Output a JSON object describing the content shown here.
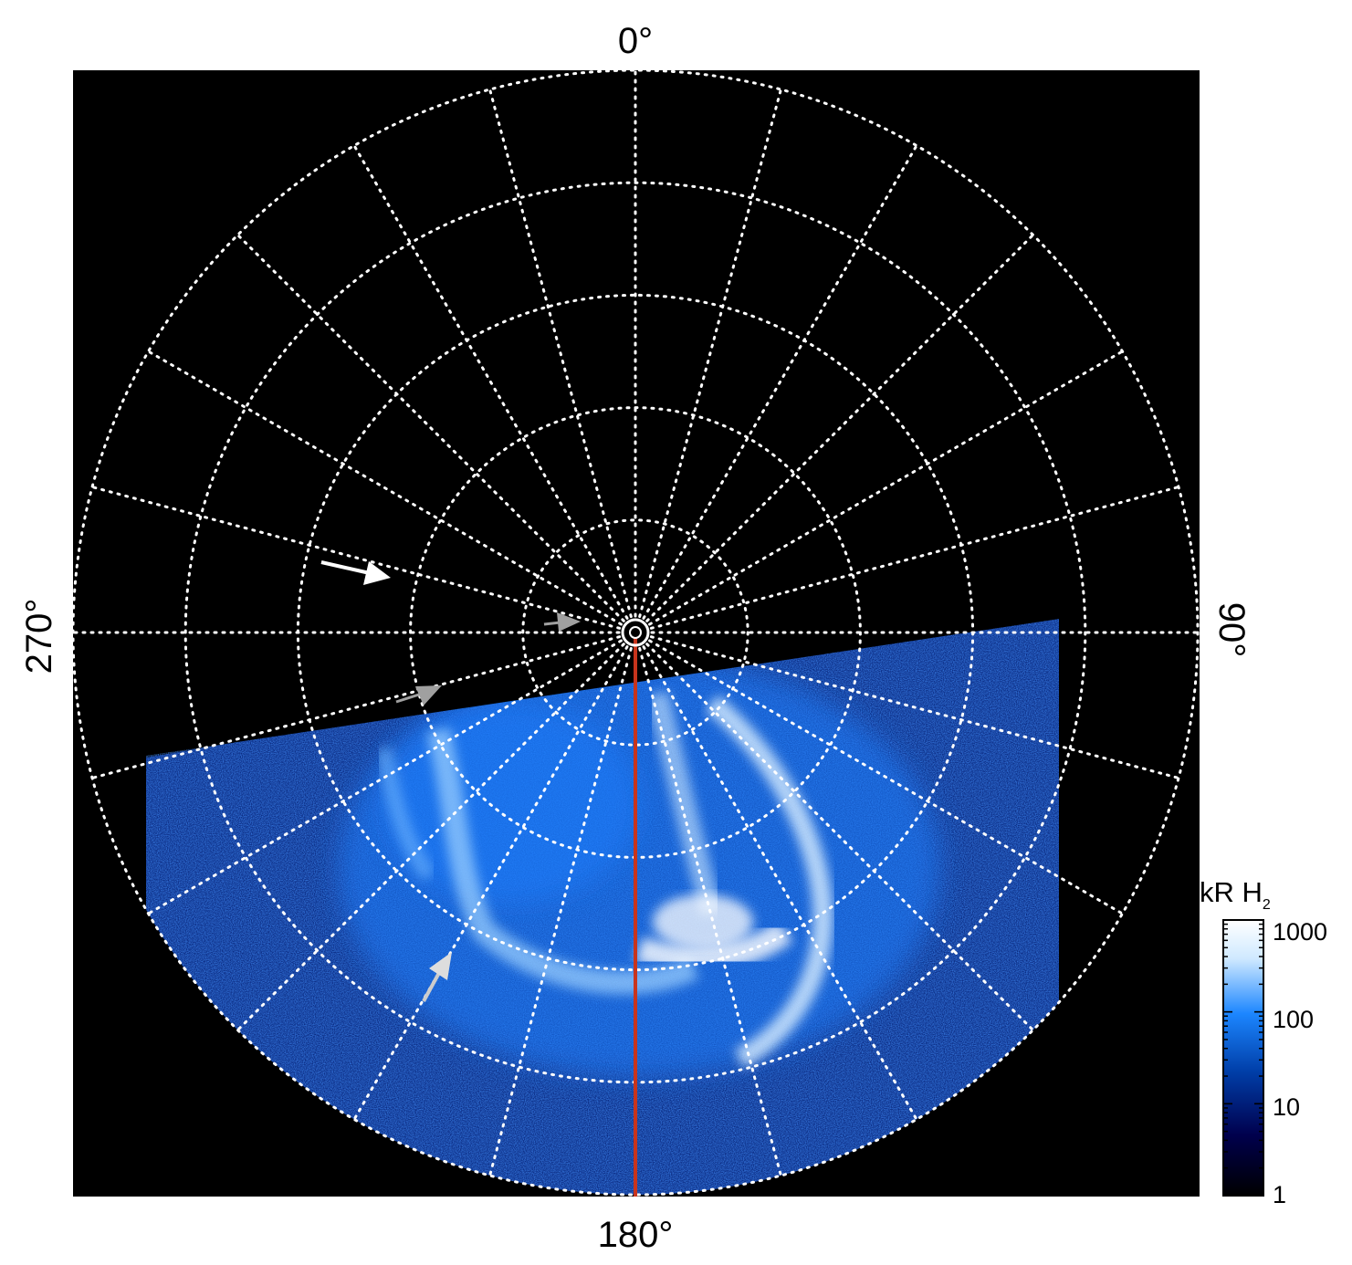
{
  "labels": {
    "top": "0°",
    "bottom": "180°",
    "left": "270°",
    "right": "90°"
  },
  "colorbar": {
    "title_main": "kR H",
    "title_sub": "2",
    "ticks": [
      "1000",
      "100",
      "10",
      "1"
    ],
    "tick_values": [
      1000,
      100,
      10,
      1
    ],
    "colors": [
      "#000000",
      "#00004d",
      "#003ea8",
      "#1c86ff",
      "#cfe9ff",
      "#ffffff"
    ]
  },
  "grid": {
    "meridian_count": 24,
    "latitude_rings": 5
  },
  "colors": {
    "background": "#000000",
    "grid": "#ffffff",
    "meridian_marker": "#c8341c",
    "arrow_white": "#ffffff",
    "arrow_gray": "#a0a0a0",
    "aurora_dark": "#0a2a8a",
    "aurora_mid": "#1d7fff",
    "aurora_bright": "#e6f4ff"
  }
}
